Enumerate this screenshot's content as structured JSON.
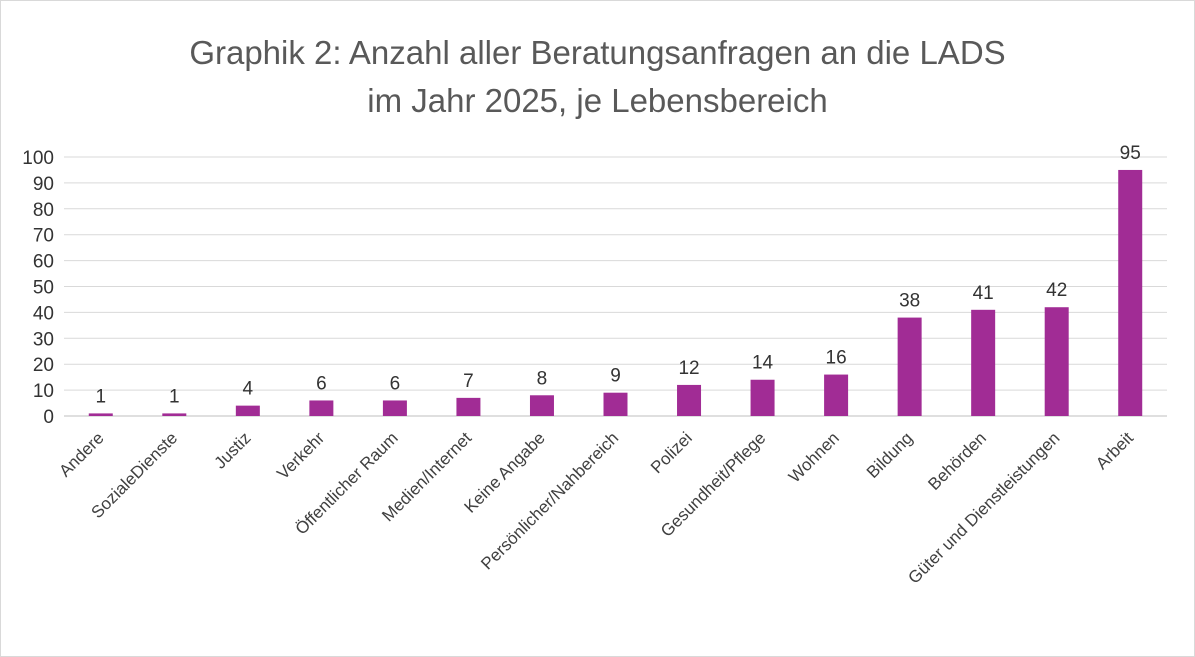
{
  "chart_data": {
    "type": "bar",
    "title_lines": [
      "Graphik 2: Anzahl aller Beratungsanfragen an die LADS",
      "im Jahr 2025, je Lebensbereich"
    ],
    "categories": [
      "Andere",
      "SozialeDienste",
      "Justiz",
      "Verkehr",
      "Öffentlicher Raum",
      "Medien/Internet",
      "Keine Angabe",
      "Persönlicher/Nahbereich",
      "Polizei",
      "Gesundheit/Pflege",
      "Wohnen",
      "Bildung",
      "Behörden",
      "Güter und Dienstleistungen",
      "Arbeit"
    ],
    "values": [
      1,
      1,
      4,
      6,
      6,
      7,
      8,
      9,
      12,
      14,
      16,
      38,
      41,
      42,
      95
    ],
    "ylim": [
      0,
      100
    ],
    "yticks": [
      0,
      10,
      20,
      30,
      40,
      50,
      60,
      70,
      80,
      90,
      100
    ],
    "grid": true,
    "bar_color": "#a12c95",
    "xlabel": "",
    "ylabel": ""
  }
}
